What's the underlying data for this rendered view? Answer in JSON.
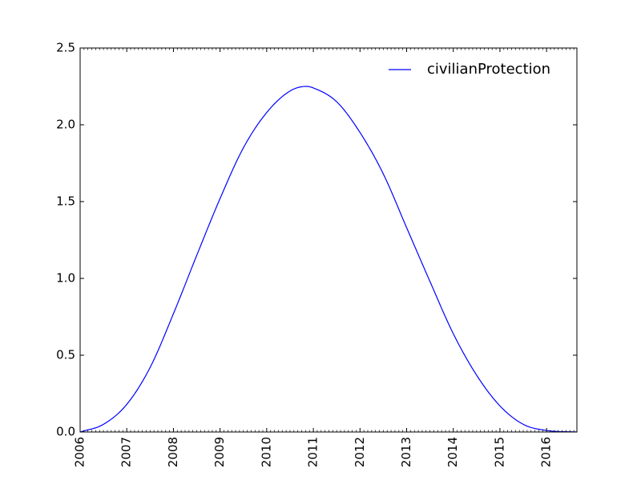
{
  "chart_data": {
    "type": "line",
    "title": "",
    "xlabel": "",
    "ylabel": "",
    "xlim": [
      2006.0,
      2016.65
    ],
    "ylim": [
      0.0,
      2.5
    ],
    "xticks": [
      2006,
      2007,
      2008,
      2009,
      2010,
      2011,
      2012,
      2013,
      2014,
      2015,
      2016
    ],
    "xtick_labels": [
      "2006",
      "2007",
      "2008",
      "2009",
      "2010",
      "2011",
      "2012",
      "2013",
      "2014",
      "2015",
      "2016"
    ],
    "yticks": [
      0.0,
      0.5,
      1.0,
      1.5,
      2.0,
      2.5
    ],
    "ytick_labels": [
      "0.0",
      "0.5",
      "1.0",
      "1.5",
      "2.0",
      "2.5"
    ],
    "legend_position": "top-right",
    "grid": false,
    "series": [
      {
        "name": "civilianProtection",
        "color": "#0000ff",
        "x": [
          2006.0,
          2006.5,
          2007.0,
          2007.5,
          2008.0,
          2008.5,
          2009.0,
          2009.5,
          2010.0,
          2010.5,
          2010.85,
          2011.0,
          2011.5,
          2012.0,
          2012.5,
          2013.0,
          2013.5,
          2014.0,
          2014.5,
          2015.0,
          2015.5,
          2016.0,
          2016.65
        ],
        "y": [
          0.0,
          0.05,
          0.18,
          0.42,
          0.77,
          1.15,
          1.52,
          1.85,
          2.08,
          2.22,
          2.25,
          2.24,
          2.15,
          1.95,
          1.68,
          1.33,
          0.98,
          0.64,
          0.37,
          0.17,
          0.05,
          0.01,
          0.0
        ]
      }
    ]
  }
}
